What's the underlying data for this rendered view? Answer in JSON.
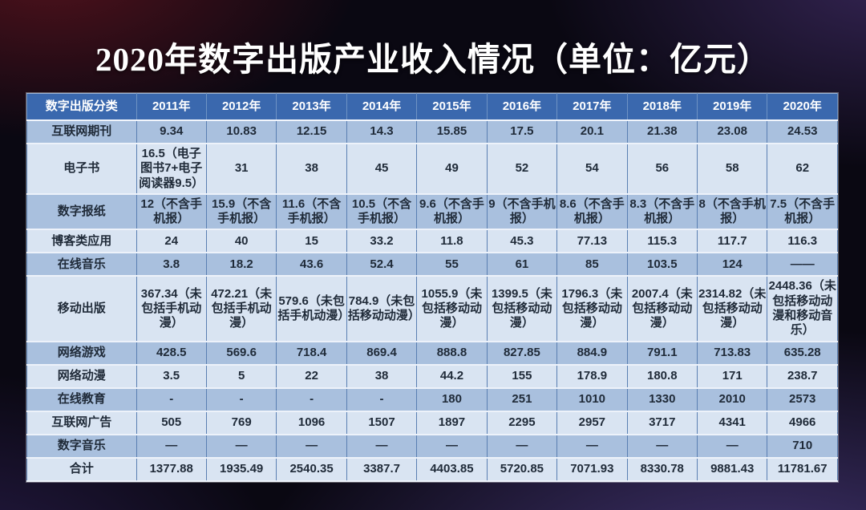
{
  "title": "2020年数字出版产业收入情况（单位：亿元）",
  "table": {
    "header": [
      "数字出版分类",
      "2011年",
      "2012年",
      "2013年",
      "2014年",
      "2015年",
      "2016年",
      "2017年",
      "2018年",
      "2019年",
      "2020年"
    ],
    "rows": [
      {
        "label": "互联网期刊",
        "values": [
          "9.34",
          "10.83",
          "12.15",
          "14.3",
          "15.85",
          "17.5",
          "20.1",
          "21.38",
          "23.08",
          "24.53"
        ]
      },
      {
        "label": "电子书",
        "values": [
          "16.5（电子图书7+电子阅读器9.5）",
          "31",
          "38",
          "45",
          "49",
          "52",
          "54",
          "56",
          "58",
          "62"
        ]
      },
      {
        "label": "数字报纸",
        "values": [
          "12（不含手机报）",
          "15.9（不含手机报）",
          "11.6（不含手机报）",
          "10.5（不含手机报）",
          "9.6（不含手机报）",
          "9（不含手机报）",
          "8.6（不含手机报）",
          "8.3（不含手机报）",
          "8（不含手机报）",
          "7.5（不含手机报）"
        ]
      },
      {
        "label": "博客类应用",
        "values": [
          "24",
          "40",
          "15",
          "33.2",
          "11.8",
          "45.3",
          "77.13",
          "115.3",
          "117.7",
          "116.3"
        ]
      },
      {
        "label": "在线音乐",
        "values": [
          "3.8",
          "18.2",
          "43.6",
          "52.4",
          "55",
          "61",
          "85",
          "103.5",
          "124",
          "——"
        ]
      },
      {
        "label": "移动出版",
        "values": [
          "367.34（未包括手机动漫）",
          "472.21（未包括手机动漫）",
          "579.6（未包括手机动漫）",
          "784.9（未包括移动动漫）",
          "1055.9（未包括移动动漫）",
          "1399.5（未包括移动动漫）",
          "1796.3（未包括移动动漫）",
          "2007.4（未包括移动动漫）",
          "2314.82（未包括移动动漫）",
          "2448.36（未包括移动动漫和移动音乐）"
        ]
      },
      {
        "label": "网络游戏",
        "values": [
          "428.5",
          "569.6",
          "718.4",
          "869.4",
          "888.8",
          "827.85",
          "884.9",
          "791.1",
          "713.83",
          "635.28"
        ]
      },
      {
        "label": "网络动漫",
        "values": [
          "3.5",
          "5",
          "22",
          "38",
          "44.2",
          "155",
          "178.9",
          "180.8",
          "171",
          "238.7"
        ]
      },
      {
        "label": "在线教育",
        "values": [
          "-",
          "-",
          "-",
          "-",
          "180",
          "251",
          "1010",
          "1330",
          "2010",
          "2573"
        ]
      },
      {
        "label": "互联网广告",
        "values": [
          "505",
          "769",
          "1096",
          "1507",
          "1897",
          "2295",
          "2957",
          "3717",
          "4341",
          "4966"
        ]
      },
      {
        "label": "数字音乐",
        "values": [
          "—",
          "—",
          "—",
          "—",
          "—",
          "—",
          "—",
          "—",
          "—",
          "710"
        ]
      },
      {
        "label": "合计",
        "values": [
          "1377.88",
          "1935.49",
          "2540.35",
          "3387.7",
          "4403.85",
          "5720.85",
          "7071.93",
          "8330.78",
          "9881.43",
          "11781.67"
        ]
      }
    ]
  },
  "colors": {
    "header_bg": "#3a68ae",
    "header_text": "#ffffff",
    "row_dark": "#a9c0de",
    "row_light": "#d9e4f2",
    "body_text": "#1f2a38",
    "title_text": "#ffffff",
    "bg_maroon": "#54121c",
    "bg_purple": "#4a3a7e"
  },
  "chart_data": {
    "type": "table",
    "title": "2020年数字出版产业收入情况（单位：亿元）",
    "unit": "亿元",
    "categories": [
      "2011",
      "2012",
      "2013",
      "2014",
      "2015",
      "2016",
      "2017",
      "2018",
      "2019",
      "2020"
    ],
    "series": [
      {
        "name": "互联网期刊",
        "values": [
          9.34,
          10.83,
          12.15,
          14.3,
          15.85,
          17.5,
          20.1,
          21.38,
          23.08,
          24.53
        ]
      },
      {
        "name": "电子书",
        "values": [
          16.5,
          31,
          38,
          45,
          49,
          52,
          54,
          56,
          58,
          62
        ],
        "note_2011": "电子图书7+电子阅读器9.5"
      },
      {
        "name": "数字报纸",
        "values": [
          12,
          15.9,
          11.6,
          10.5,
          9.6,
          9,
          8.6,
          8.3,
          8,
          7.5
        ],
        "note": "不含手机报"
      },
      {
        "name": "博客类应用",
        "values": [
          24,
          40,
          15,
          33.2,
          11.8,
          45.3,
          77.13,
          115.3,
          117.7,
          116.3
        ]
      },
      {
        "name": "在线音乐",
        "values": [
          3.8,
          18.2,
          43.6,
          52.4,
          55,
          61,
          85,
          103.5,
          124,
          null
        ]
      },
      {
        "name": "移动出版",
        "values": [
          367.34,
          472.21,
          579.6,
          784.9,
          1055.9,
          1399.5,
          1796.3,
          2007.4,
          2314.82,
          2448.36
        ],
        "note": "2011-2013未包括手机动漫；2014-2019未包括移动动漫；2020未包括移动动漫和移动音乐"
      },
      {
        "name": "网络游戏",
        "values": [
          428.5,
          569.6,
          718.4,
          869.4,
          888.8,
          827.85,
          884.9,
          791.1,
          713.83,
          635.28
        ]
      },
      {
        "name": "网络动漫",
        "values": [
          3.5,
          5,
          22,
          38,
          44.2,
          155,
          178.9,
          180.8,
          171,
          238.7
        ]
      },
      {
        "name": "在线教育",
        "values": [
          null,
          null,
          null,
          null,
          180,
          251,
          1010,
          1330,
          2010,
          2573
        ]
      },
      {
        "name": "互联网广告",
        "values": [
          505,
          769,
          1096,
          1507,
          1897,
          2295,
          2957,
          3717,
          4341,
          4966
        ]
      },
      {
        "name": "数字音乐",
        "values": [
          null,
          null,
          null,
          null,
          null,
          null,
          null,
          null,
          null,
          710
        ]
      },
      {
        "name": "合计",
        "values": [
          1377.88,
          1935.49,
          2540.35,
          3387.7,
          4403.85,
          5720.85,
          7071.93,
          8330.78,
          9881.43,
          11781.67
        ]
      }
    ]
  }
}
